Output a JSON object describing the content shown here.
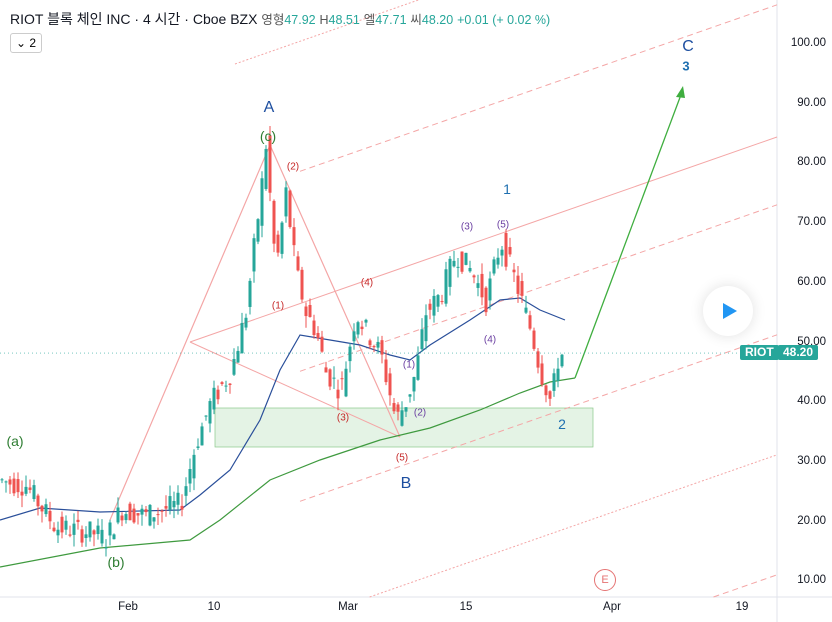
{
  "header": {
    "symbol": "RIOT 블록 체인 INC",
    "interval": "4 시간",
    "exchange": "Cboe BZX",
    "open_label": "영형",
    "open": "47.92",
    "high_label": "H",
    "high": "48.51",
    "low_label": "엘",
    "low": "47.71",
    "close_label": "씨",
    "close": "48.20",
    "change": "+0.01 (+ 0.02 %)",
    "collapse": "⌄ 2"
  },
  "price_axis": [
    "100.00",
    "90.00",
    "80.00",
    "70.00",
    "60.00",
    "50.00",
    "40.00",
    "30.00",
    "20.00",
    "10.00"
  ],
  "time_axis": [
    "Feb",
    "10",
    "Mar",
    "15",
    "Apr",
    "19"
  ],
  "price_tag": {
    "symbol": "RIOT",
    "price": "48.20"
  },
  "labels": {
    "A": "A",
    "B": "B",
    "C": "C",
    "C3": "3",
    "w1": "1",
    "w2": "2",
    "a": "(a)",
    "b": "(b)",
    "c": "(c)",
    "s1": "(1)",
    "s2": "(2)",
    "s3": "(3)",
    "s4": "(4)",
    "s5": "(5)",
    "p1": "(1)",
    "p2": "(2)",
    "p3": "(3)",
    "p4": "(4)",
    "p5": "(5)"
  },
  "event_badge": "E",
  "colors": {
    "up": "#26a69a",
    "down": "#ef5350",
    "ma_fast": "#2a4f9a",
    "ma_slow": "#3f9a3f",
    "channel": "#f4a6a6",
    "arrow": "#3fae3f"
  }
}
